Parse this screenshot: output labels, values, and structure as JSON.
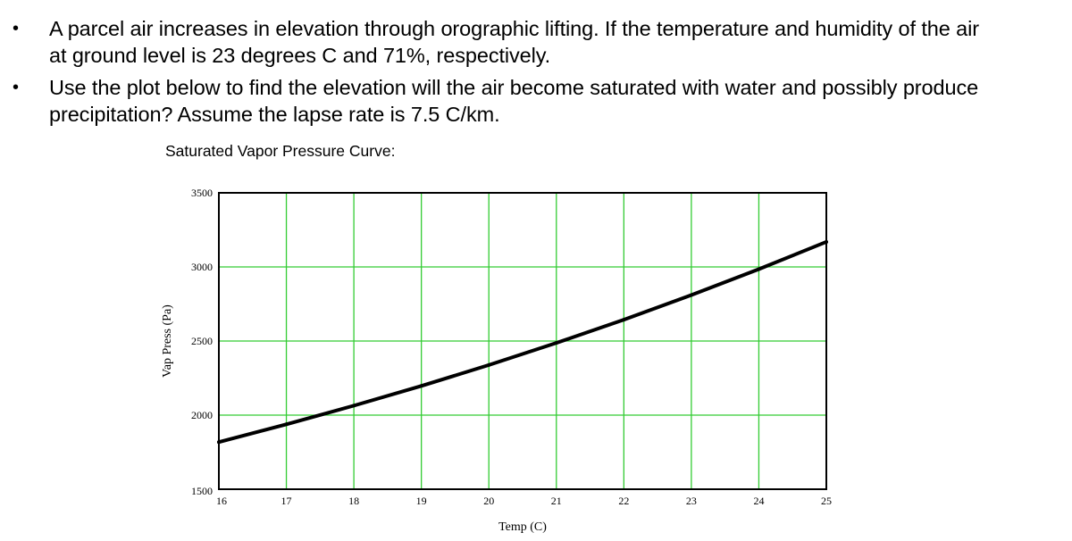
{
  "bullets": [
    {
      "line1": "A parcel air increases in elevation through orographic lifting. If the temperature and humidity of the air",
      "line2": "at ground level is 23 degrees C and 71%, respectively."
    },
    {
      "line1": "Use the plot below to find the elevation will the air become saturated with water and possibly produce",
      "line2": "precipitation?  Assume the lapse rate is 7.5 C/km."
    }
  ],
  "bullet_symbol": "•",
  "chart_data": {
    "type": "line",
    "title": "Saturated Vapor Pressure Curve:",
    "xlabel": "Temp (C)",
    "ylabel": "Vap Press (Pa)",
    "xlim": [
      16,
      25
    ],
    "ylim": [
      1500,
      3500
    ],
    "x_ticks": [
      16,
      17,
      18,
      19,
      20,
      21,
      22,
      23,
      24,
      25
    ],
    "y_ticks": [
      1500,
      2000,
      2500,
      3000,
      3500
    ],
    "grid": true,
    "colors": {
      "grid": "#33cc33",
      "line": "#000000",
      "frame": "#000000"
    },
    "series": [
      {
        "x": [
          16,
          17,
          18,
          19,
          20,
          21,
          22,
          23,
          24,
          25
        ],
        "y": [
          1818,
          1938,
          2064,
          2197,
          2338,
          2487,
          2644,
          2810,
          2985,
          3169
        ]
      }
    ]
  }
}
